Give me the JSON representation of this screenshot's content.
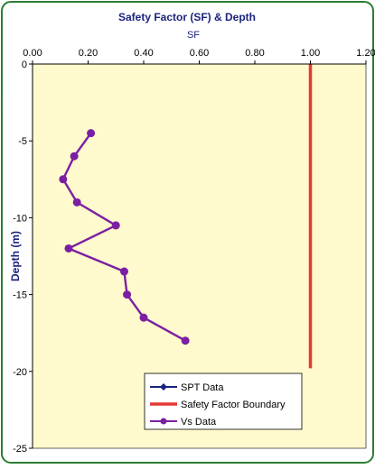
{
  "chart_data": {
    "type": "scatter",
    "title": "Safety Factor (SF) & Depth",
    "xlabel": "SF",
    "ylabel": "Depth (m)",
    "xlim": [
      0,
      1.2
    ],
    "ylim": [
      -25,
      0
    ],
    "x_ticks": [
      "0.00",
      "0.20",
      "0.40",
      "0.60",
      "0.80",
      "1.00",
      "1.20"
    ],
    "x_tick_values": [
      0,
      0.2,
      0.4,
      0.6,
      0.8,
      1.0,
      1.2
    ],
    "y_ticks": [
      "0",
      "-5",
      "-10",
      "-15",
      "-20",
      "-25"
    ],
    "y_tick_values": [
      0,
      -5,
      -10,
      -15,
      -20,
      -25
    ],
    "grid": false,
    "x_axis_position": "top",
    "legend_position": "bottom-center",
    "colors": {
      "plot_background": "#FFFACD",
      "chart_background": "#FFFFFF",
      "frame_border": "#2E7D32",
      "title_color": "#1A237E",
      "axis_label_color": "#1A237E",
      "tick_color": "#000000",
      "spt_series": "#1A237E",
      "boundary_series": "#E53935",
      "vs_series": "#7B1FA2"
    },
    "series": [
      {
        "name": "SPT Data",
        "color": "#1A237E",
        "marker": "diamond",
        "x": [],
        "y": []
      },
      {
        "name": "Safety Factor Boundary",
        "color": "#E53935",
        "marker": "none",
        "x": [
          1.0,
          1.0
        ],
        "y": [
          0,
          -19.8
        ]
      },
      {
        "name": "Vs Data",
        "color": "#7B1FA2",
        "marker": "circle",
        "x": [
          0.21,
          0.15,
          0.11,
          0.16,
          0.3,
          0.13,
          0.33,
          0.34,
          0.4,
          0.55
        ],
        "y": [
          -4.5,
          -6.0,
          -7.5,
          -9.0,
          -10.5,
          -12.0,
          -13.5,
          -15.0,
          -16.5,
          -18.0
        ]
      }
    ]
  }
}
